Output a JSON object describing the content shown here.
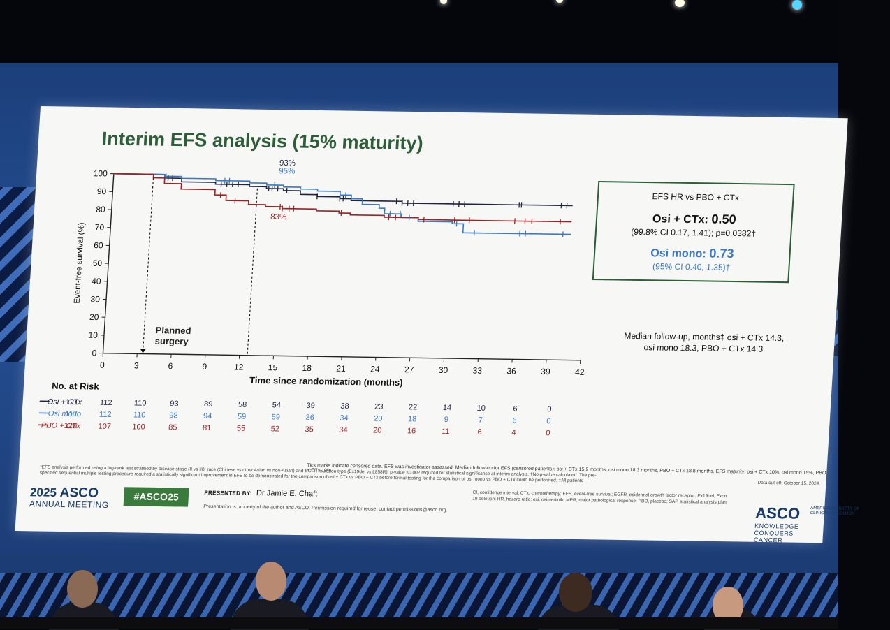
{
  "slide": {
    "title": "Interim EFS analysis (15% maturity)",
    "hr_box": {
      "title": "EFS HR vs PBO + CTx",
      "osi_ctx_label": "Osi + CTx: ",
      "osi_ctx_value": "0.50",
      "osi_ctx_ci": "(99.8% CI 0.17, 1.41); p=0.0382†",
      "osi_mono_label": "Osi mono: ",
      "osi_mono_value": "0.73",
      "osi_mono_ci": "(95% CI 0.40, 1.35)†"
    },
    "followup": "Median follow-up, months‡ osi + CTx 14.3, osi mono 18.3, PBO + CTx 14.3",
    "tick_note": "Tick marks indicate censored data. EFS was investigator assessed. Median follow-up for EFS (censored patients): osi + CTx 15.9 months, osi mono 18.3 months, PBO + CTx 18.8 months. EFS maturity: osi + CTx 10%, osi mono 15%, PBO + CTx 19%",
    "footnote": "*EFS analysis performed using a log-rank test stratified by disease stage (II vs III), race (Chinese vs other Asian vs non-Asian) and EGFR mutation type (Ex19del vs L858R). p-value ≤0.002 required for statistical significance at interim analysis. †No p-value calculated. The pre-specified sequential multiple testing procedure required a statistically significant improvement in EFS to be demonstrated for the comparison of osi + CTx vs PBO + CTx before formal testing for the comparison of osi mono vs PBO + CTx could be performed. ‡All patients",
    "data_cutoff": "Data cut-off: October 15, 2024",
    "abbreviations": "CI, confidence interval; CTx, chemotherapy; EFS, event-free survival; EGFR, epidermal growth factor receptor; Ex19del, Exon 19 deletion; HR, hazard ratio; osi, osimertinib; MPR, major pathological response; PBO, placebo; SAP, statistical analysis plan",
    "meeting_year": "2025",
    "meeting_name": "ASCO",
    "meeting_sub": "ANNUAL MEETING",
    "hashtag": "#ASCO25",
    "presented_by_label": "PRESENTED BY:",
    "presenter": "Dr Jamie E. Chaft",
    "property_note": "Presentation is property of the author and ASCO. Permission required for reuse; contact permissions@asco.org.",
    "asco_logo": "ASCO",
    "asco_logo_sub": "AMERICAN SOCIETY OF CLINICAL ONCOLOGY",
    "tagline": "KNOWLEDGE CONQUERS CANCER"
  },
  "chart_data": {
    "type": "line",
    "title": "Interim EFS analysis (15% maturity)",
    "xlabel": "Time since randomization (months)",
    "ylabel": "Event-free survival (%)",
    "xlim": [
      0,
      42
    ],
    "ylim": [
      0,
      100
    ],
    "x_ticks": [
      0,
      3,
      6,
      9,
      12,
      15,
      18,
      21,
      24,
      27,
      30,
      33,
      36,
      39,
      42
    ],
    "y_ticks": [
      0,
      10,
      20,
      30,
      40,
      50,
      60,
      70,
      80,
      90,
      100
    ],
    "colors": {
      "osi_ctx": "#1f2340",
      "osi_mono": "#3b78c4",
      "pbo_ctx": "#9b2226",
      "axis": "#222222"
    },
    "series": [
      {
        "name": "Osi + CTx",
        "key": "osi_ctx",
        "x": [
          0,
          2.8,
          4.5,
          6,
          9,
          12,
          13.5,
          15,
          16.5,
          18,
          20,
          21,
          24,
          25.5,
          27,
          30,
          33,
          36,
          39,
          40.5
        ],
        "y": [
          100,
          100,
          98,
          96,
          95,
          94,
          93,
          92,
          90,
          89,
          88,
          87,
          87,
          86,
          86,
          86,
          86,
          86,
          86,
          86
        ]
      },
      {
        "name": "Osi mono",
        "key": "osi_mono",
        "x": [
          0,
          2.8,
          4.5,
          6,
          9,
          12,
          13.5,
          15,
          16.5,
          18,
          20,
          21,
          22,
          23.5,
          24,
          25.5,
          27,
          30,
          31,
          33,
          36,
          39,
          40.5
        ],
        "y": [
          100,
          100,
          99,
          98,
          97,
          96,
          95,
          94,
          93,
          92,
          90,
          88,
          85,
          83,
          80,
          78,
          76,
          75,
          70,
          70,
          70,
          70,
          70
        ]
      },
      {
        "name": "PBO + CTx",
        "key": "pbo_ctx",
        "x": [
          0,
          3.5,
          4.5,
          6,
          9,
          10,
          12,
          13.5,
          15,
          18,
          20,
          21,
          24,
          27,
          30,
          33,
          36,
          39,
          40.5
        ],
        "y": [
          100,
          98,
          95,
          92,
          89,
          86,
          84,
          83,
          82,
          81,
          80,
          79,
          78,
          77,
          77,
          77,
          77,
          77,
          77
        ]
      }
    ],
    "censor_x": {
      "osi_ctx": [
        4.8,
        5.2,
        9.5,
        10,
        10.5,
        11,
        13.7,
        14,
        14.5,
        15.3,
        18,
        20,
        20.3,
        25,
        25.5,
        26,
        26.5,
        30,
        30.5,
        31,
        35.8,
        36,
        39.5,
        40
      ],
      "osi_mono": [
        4.6,
        9.8,
        10.2,
        14.2,
        20,
        20.5,
        24.5,
        25.4,
        26.2,
        30.4,
        32,
        36,
        36.5,
        39.8
      ],
      "pbo_ctx": [
        9.5,
        10.8,
        14.8,
        15,
        15.6,
        16,
        20.2,
        24.4,
        25,
        27.5,
        30.2,
        31.5,
        35.5,
        36.4,
        37,
        39.5
      ]
    },
    "annotations": [
      {
        "text": "93%",
        "x": 14.5,
        "y": 106,
        "color_key": "osi_ctx"
      },
      {
        "text": "95%",
        "x": 14.5,
        "y": 101.5,
        "color_key": "osi_mono"
      },
      {
        "text": "83%",
        "x": 14,
        "y": 76,
        "color_key": "pbo_ctx"
      },
      {
        "text": "Planned",
        "x": 4.5,
        "y": 11.5,
        "color_key": "axis"
      },
      {
        "text": "surgery",
        "x": 4.5,
        "y": 5.5,
        "color_key": "axis"
      }
    ],
    "reference_lines": [
      {
        "x": 3.5,
        "y_from": 0,
        "y_to": 98
      },
      {
        "x": 12.7,
        "y_from": 0,
        "y_to": 93
      }
    ],
    "risk_table": {
      "title": "No. at Risk",
      "rows": [
        {
          "name": "Osi + CTx",
          "key": "osi_ctx",
          "values": [
            "121",
            "112",
            "110",
            "93",
            "89",
            "58",
            "54",
            "39",
            "38",
            "23",
            "22",
            "14",
            "10",
            "6",
            "0"
          ]
        },
        {
          "name": "Osi mono",
          "key": "osi_mono",
          "values": [
            "117",
            "112",
            "110",
            "98",
            "94",
            "59",
            "59",
            "36",
            "34",
            "20",
            "18",
            "9",
            "7",
            "6",
            "0"
          ]
        },
        {
          "name": "PBO + CTx",
          "key": "pbo_ctx",
          "values": [
            "120",
            "107",
            "100",
            "85",
            "81",
            "55",
            "52",
            "35",
            "34",
            "20",
            "16",
            "11",
            "6",
            "4",
            "0"
          ]
        }
      ]
    }
  }
}
